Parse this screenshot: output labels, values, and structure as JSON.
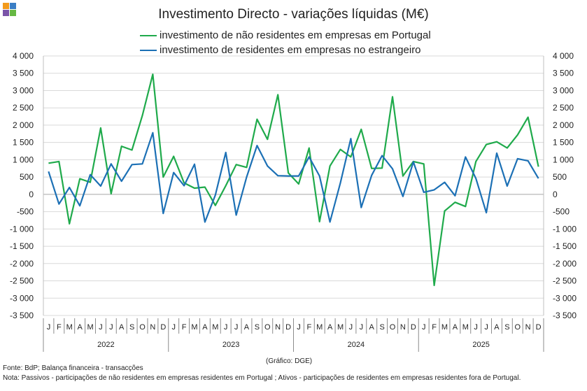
{
  "chart_data": {
    "type": "line",
    "title": "Investimento Directo - variações líquidas (M€)",
    "y_ticks": [
      4000,
      3500,
      3000,
      2500,
      2000,
      1500,
      1000,
      500,
      0,
      -500,
      -1000,
      -1500,
      -2000,
      -2500,
      -3000,
      -3500
    ],
    "y_tick_labels": [
      "4 000",
      "3 500",
      "3 000",
      "2 500",
      "2 000",
      "1 500",
      "1 000",
      "500",
      "0",
      "-500",
      "-1 000",
      "-1 500",
      "-2 000",
      "-2 500",
      "-3 000",
      "-3 500"
    ],
    "ylim": [
      -3500,
      4000
    ],
    "month_labels": [
      "J",
      "F",
      "M",
      "A",
      "M",
      "J",
      "J",
      "A",
      "S",
      "O",
      "N",
      "D"
    ],
    "years": [
      "2022",
      "2023",
      "2024",
      "2025"
    ],
    "series": [
      {
        "name": "investimento de não residentes em empresas em Portugal",
        "color": "#1faa4b",
        "values": [
          900,
          950,
          -850,
          450,
          350,
          1920,
          20,
          1390,
          1280,
          2280,
          3470,
          500,
          1100,
          330,
          180,
          210,
          -320,
          250,
          860,
          780,
          2170,
          1590,
          2880,
          620,
          300,
          1340,
          -790,
          820,
          1300,
          1080,
          1880,
          750,
          760,
          2820,
          530,
          950,
          880,
          -2630,
          -480,
          -230,
          -350,
          950,
          1440,
          1520,
          1340,
          1720,
          2230,
          800
        ]
      },
      {
        "name": "investimento de residentes em empresas no estrangeiro",
        "color": "#1c70b5",
        "values": [
          660,
          -280,
          200,
          -330,
          570,
          240,
          880,
          380,
          860,
          880,
          1780,
          -550,
          630,
          250,
          870,
          -800,
          -20,
          1210,
          -600,
          500,
          1410,
          820,
          540,
          530,
          530,
          1080,
          530,
          -800,
          330,
          1610,
          -380,
          550,
          1120,
          740,
          -60,
          940,
          60,
          130,
          350,
          -40,
          1080,
          460,
          -530,
          1190,
          240,
          1030,
          970,
          460
        ]
      }
    ]
  },
  "footer": {
    "credit": "(Gráfico: DGE)",
    "source": "Fonte: BdP; Balança financeira - transacções",
    "note": "Nota: Passivos - participações de não residentes em empresas residentes em Portugal ; Ativos - participações de residentes em empresas residentes fora de Portugal."
  },
  "colors": {
    "logo": [
      "#f29a1c",
      "#3a7ec4",
      "#7a54a8",
      "#66b843"
    ],
    "grid": "#d9d9d9",
    "axis": "#bfbfbf"
  }
}
